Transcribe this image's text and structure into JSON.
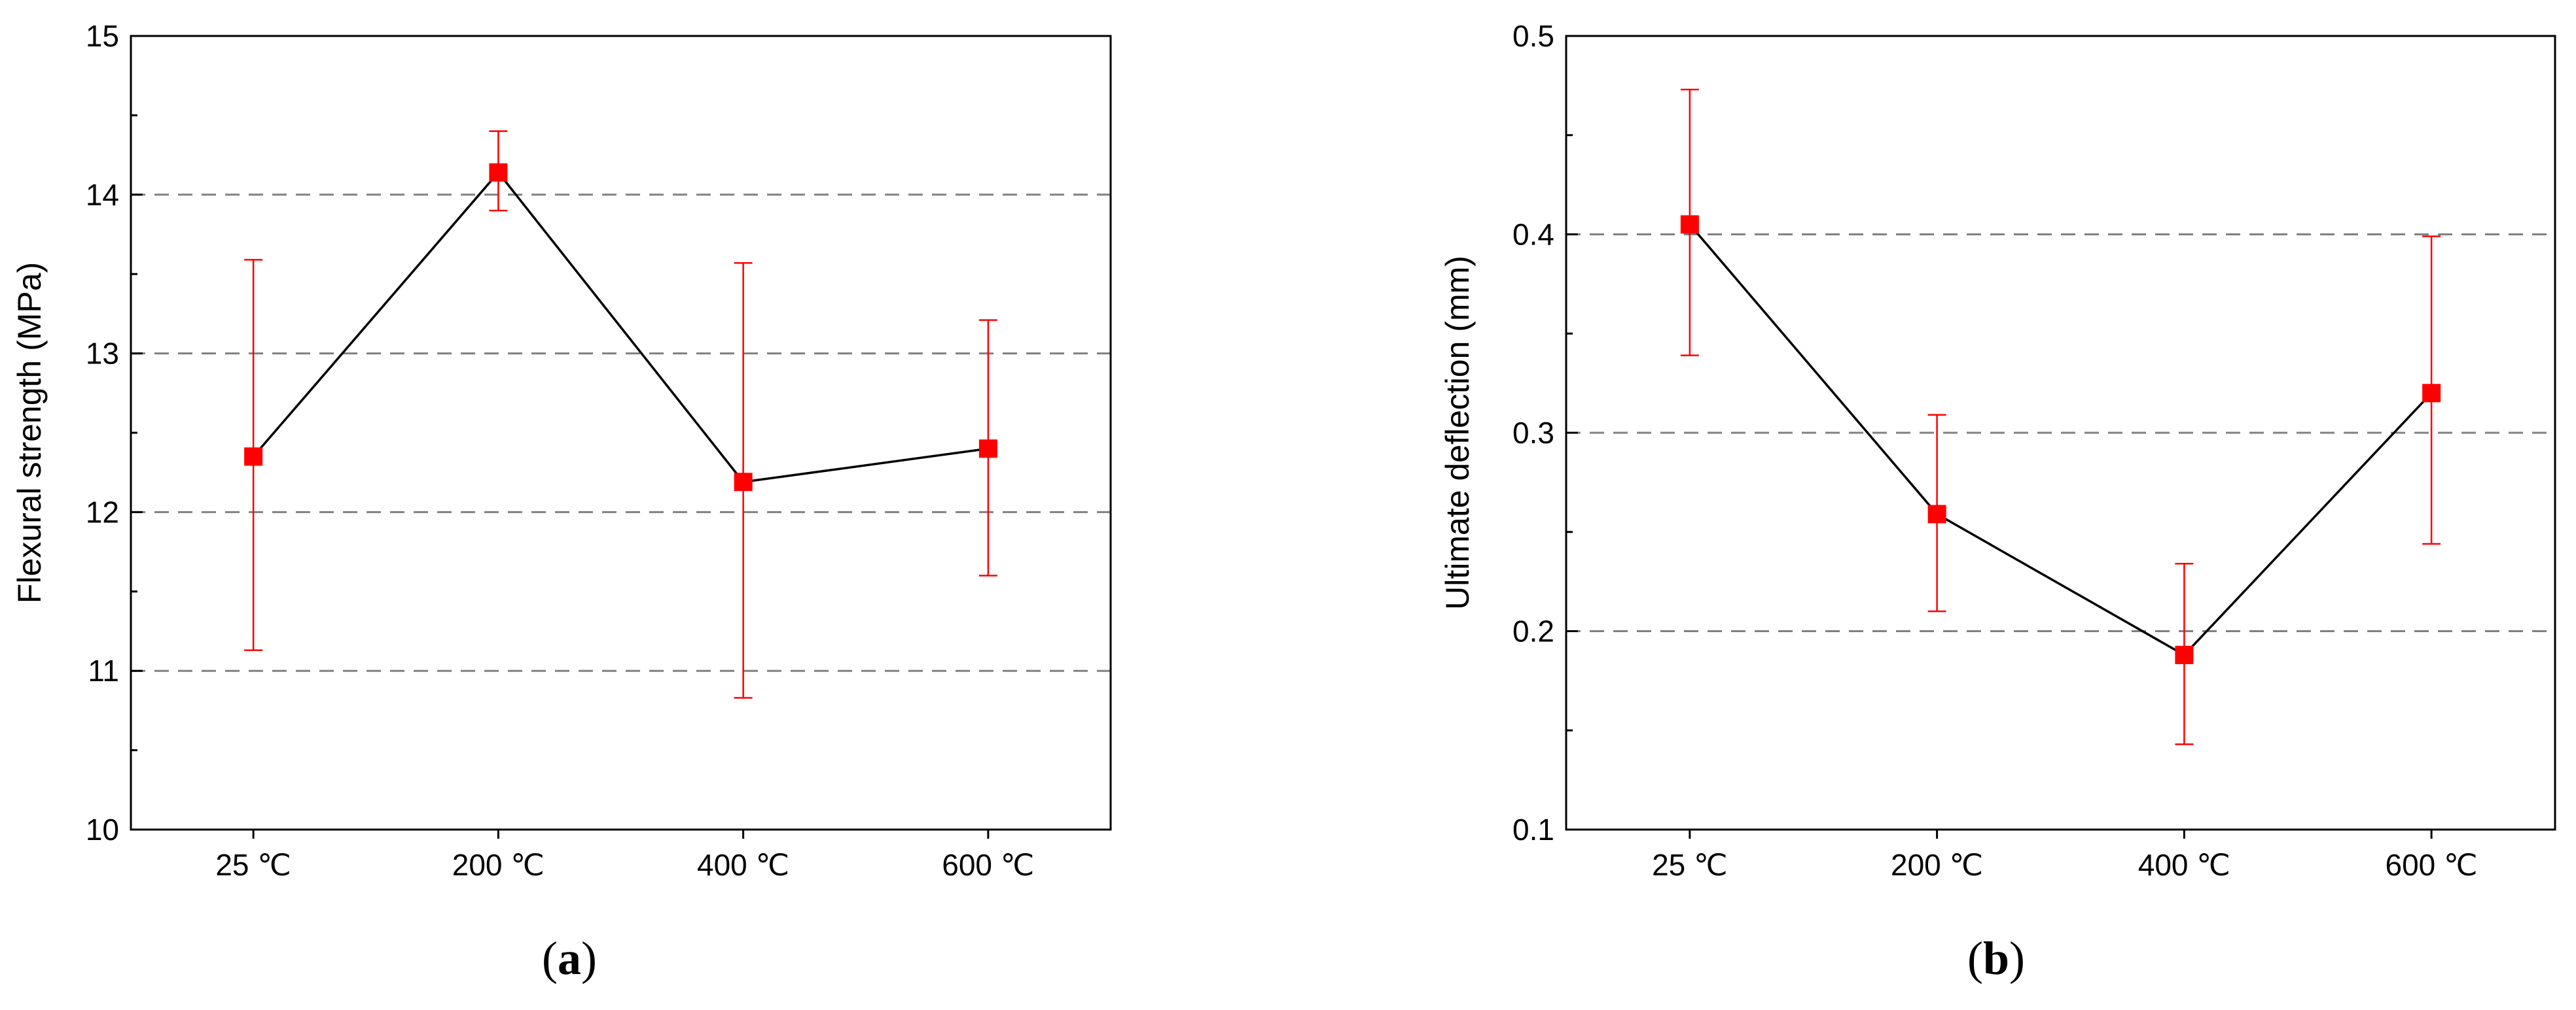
{
  "chart_data": [
    {
      "type": "line",
      "panel_label": "a",
      "ylabel": "Flexural strength (MPa)",
      "xlabel": "",
      "categories": [
        "25 ℃",
        "200 ℃",
        "400 ℃",
        "600 ℃"
      ],
      "ylim": [
        10,
        15
      ],
      "yticks": [
        "10",
        "11",
        "12",
        "13",
        "14",
        "15"
      ],
      "grid": "horizontal dashed",
      "series": [
        {
          "values": [
            12.35,
            14.14,
            12.19,
            12.4
          ],
          "error_low": [
            11.13,
            13.9,
            10.83,
            11.6
          ],
          "error_high": [
            13.59,
            14.4,
            13.57,
            13.21
          ]
        }
      ],
      "colors": {
        "line": "#000000",
        "marker": "#ff0000",
        "error_bar": "#ff0000",
        "grid": "#808080"
      }
    },
    {
      "type": "line",
      "panel_label": "b",
      "ylabel": "Ultimate deflection (mm)",
      "xlabel": "",
      "categories": [
        "25 ℃",
        "200 ℃",
        "400 ℃",
        "600 ℃"
      ],
      "ylim": [
        0.1,
        0.5
      ],
      "yticks": [
        "0.1",
        "0.2",
        "0.3",
        "0.4",
        "0.5"
      ],
      "grid": "horizontal dashed",
      "series": [
        {
          "values": [
            0.405,
            0.259,
            0.188,
            0.32
          ],
          "error_low": [
            0.339,
            0.21,
            0.143,
            0.244
          ],
          "error_high": [
            0.473,
            0.309,
            0.234,
            0.399
          ]
        }
      ],
      "colors": {
        "line": "#000000",
        "marker": "#ff0000",
        "error_bar": "#ff0000",
        "grid": "#808080"
      }
    }
  ]
}
